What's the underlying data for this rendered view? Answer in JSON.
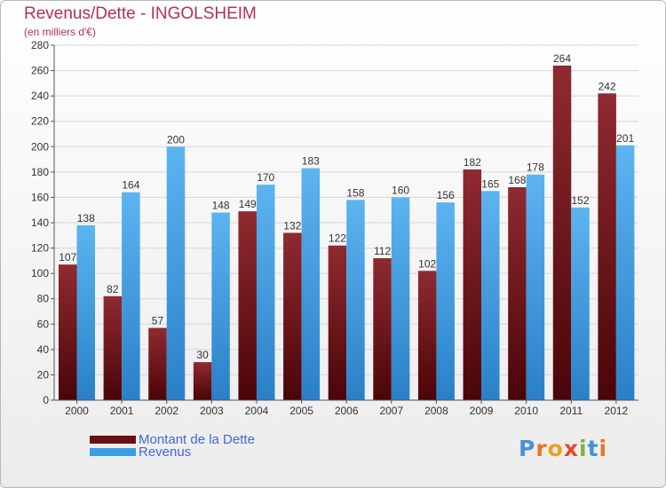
{
  "title": "Revenus/Dette - INGOLSHEIM",
  "subtitle": "(en milliers d'€)",
  "colors": {
    "dette": "#6b0f14",
    "revenus": "#3a9ee4",
    "title": "#b0305a",
    "legend_text": "#4466dd"
  },
  "legend": {
    "dette_label": "Montant de la Dette",
    "revenus_label": "Revenus"
  },
  "logo": {
    "text": "Proxiti",
    "letter_colors": [
      "#4a90d9",
      "#e8762a",
      "#e8a22a",
      "#e84a2a",
      "#7ab648",
      "#4a90d9",
      "#e8762a"
    ]
  },
  "chart_data": {
    "type": "bar",
    "categories": [
      "2000",
      "2001",
      "2002",
      "2003",
      "2004",
      "2005",
      "2006",
      "2007",
      "2008",
      "2009",
      "2010",
      "2011",
      "2012"
    ],
    "series": [
      {
        "name": "Montant de la Dette",
        "values": [
          107,
          82,
          57,
          30,
          149,
          132,
          122,
          112,
          102,
          182,
          168,
          264,
          242
        ]
      },
      {
        "name": "Revenus",
        "values": [
          138,
          164,
          200,
          148,
          170,
          183,
          158,
          160,
          156,
          165,
          178,
          152,
          201
        ]
      }
    ],
    "ylim": [
      0,
      280
    ],
    "yticks": [
      0,
      20,
      40,
      60,
      80,
      100,
      120,
      140,
      160,
      180,
      200,
      220,
      240,
      260,
      280
    ],
    "grid": true,
    "legend_position": "bottom-left"
  }
}
